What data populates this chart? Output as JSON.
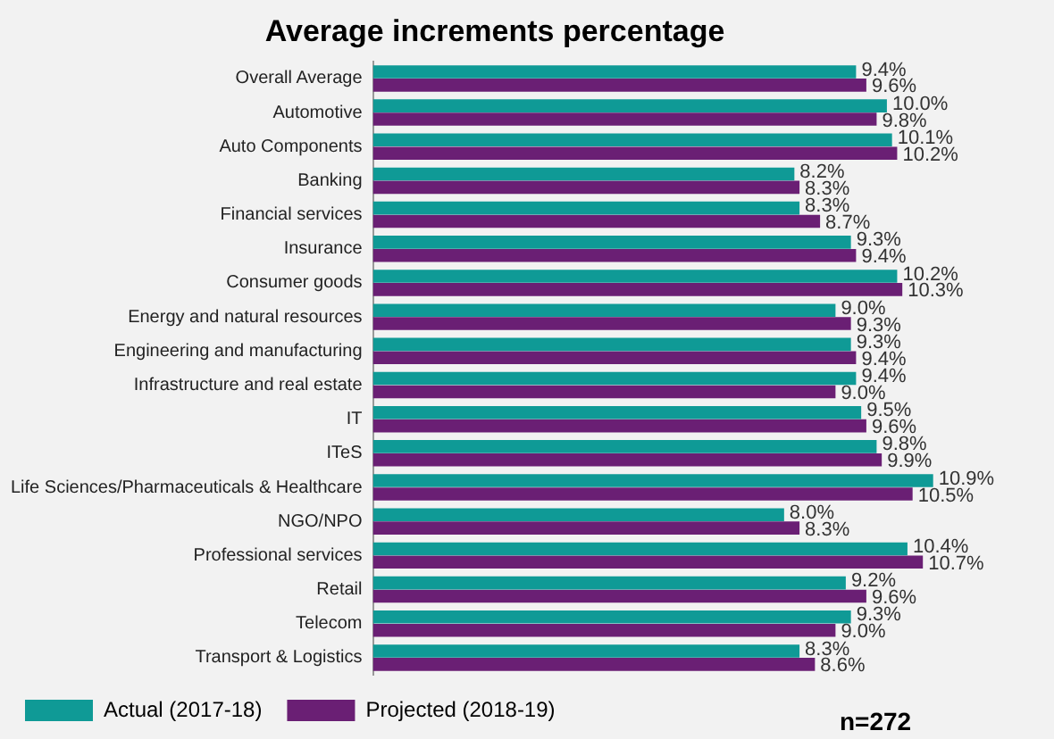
{
  "chart_data": {
    "type": "bar",
    "orientation": "horizontal",
    "title": "Average increments percentage",
    "categories": [
      "Overall Average",
      "Automotive",
      "Auto Components",
      "Banking",
      "Financial services",
      "Insurance",
      "Consumer goods",
      "Energy and natural resources",
      "Engineering and manufacturing",
      "Infrastructure and real estate",
      "IT",
      "ITeS",
      "Life Sciences/Pharmaceuticals & Healthcare",
      "NGO/NPO",
      "Professional services",
      "Retail",
      "Telecom",
      "Transport & Logistics"
    ],
    "series": [
      {
        "name": "Actual (2017-18)",
        "color": "#0f9a96",
        "values": [
          9.4,
          10.0,
          10.1,
          8.2,
          8.3,
          9.3,
          10.2,
          9.0,
          9.3,
          9.4,
          9.5,
          9.8,
          10.9,
          8.0,
          10.4,
          9.2,
          9.3,
          8.3
        ],
        "value_labels": [
          "9.4%",
          "10.0%",
          "10.1%",
          "8.2%",
          "8.3%",
          "9.3%",
          "10.2%",
          "9.0%",
          "9.3%",
          "9.4%",
          "9.5%",
          "9.8%",
          "10.9%",
          "8.0%",
          "10.4%",
          "9.2%",
          "9.3%",
          "8.3%"
        ]
      },
      {
        "name": "Projected (2018-19)",
        "color": "#6a1f74",
        "values": [
          9.6,
          9.8,
          10.2,
          8.3,
          8.7,
          9.4,
          10.3,
          9.3,
          9.4,
          9.0,
          9.6,
          9.9,
          10.5,
          8.3,
          10.7,
          9.6,
          9.0,
          8.6
        ],
        "value_labels": [
          "9.6%",
          "9.8%",
          "10.2%",
          "8.3%",
          "8.7%",
          "9.4%",
          "10.3%",
          "9.3%",
          "9.4%",
          "9.0%",
          "9.6%",
          "9.9%",
          "10.5%",
          "8.3%",
          "10.7%",
          "9.6%",
          "9.0%",
          "8.6%"
        ]
      }
    ],
    "tick_labels": "y",
    "grid": false,
    "legend": "bottom",
    "annotations": [
      "n=272"
    ]
  }
}
